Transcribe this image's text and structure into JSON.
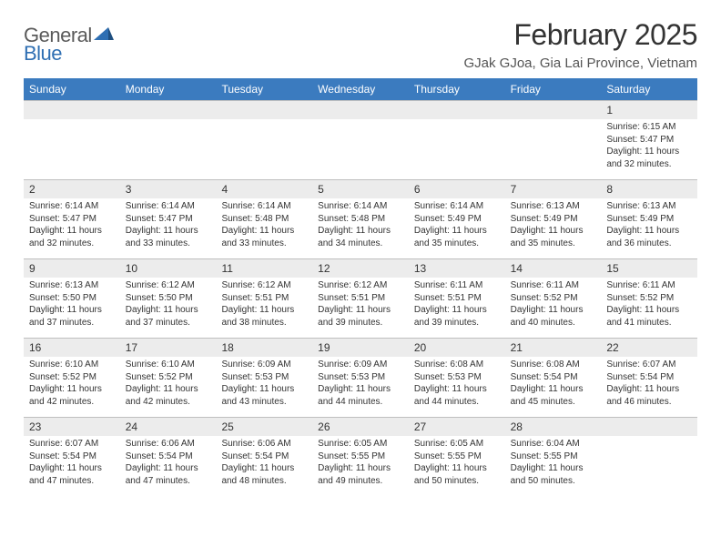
{
  "logo": {
    "part1": "General",
    "part2": "Blue"
  },
  "title": "February 2025",
  "location": "GJak GJoa, Gia Lai Province, Vietnam",
  "colors": {
    "header_bar": "#3b7bbf",
    "daynum_bg": "#ececec",
    "border": "#bfbfbf",
    "logo_gray": "#5a5a5a",
    "logo_blue": "#2f6fb3"
  },
  "weekdays": [
    "Sunday",
    "Monday",
    "Tuesday",
    "Wednesday",
    "Thursday",
    "Friday",
    "Saturday"
  ],
  "weeks": [
    [
      {
        "n": "",
        "sr": "",
        "ss": "",
        "dl": ""
      },
      {
        "n": "",
        "sr": "",
        "ss": "",
        "dl": ""
      },
      {
        "n": "",
        "sr": "",
        "ss": "",
        "dl": ""
      },
      {
        "n": "",
        "sr": "",
        "ss": "",
        "dl": ""
      },
      {
        "n": "",
        "sr": "",
        "ss": "",
        "dl": ""
      },
      {
        "n": "",
        "sr": "",
        "ss": "",
        "dl": ""
      },
      {
        "n": "1",
        "sr": "Sunrise: 6:15 AM",
        "ss": "Sunset: 5:47 PM",
        "dl": "Daylight: 11 hours and 32 minutes."
      }
    ],
    [
      {
        "n": "2",
        "sr": "Sunrise: 6:14 AM",
        "ss": "Sunset: 5:47 PM",
        "dl": "Daylight: 11 hours and 32 minutes."
      },
      {
        "n": "3",
        "sr": "Sunrise: 6:14 AM",
        "ss": "Sunset: 5:47 PM",
        "dl": "Daylight: 11 hours and 33 minutes."
      },
      {
        "n": "4",
        "sr": "Sunrise: 6:14 AM",
        "ss": "Sunset: 5:48 PM",
        "dl": "Daylight: 11 hours and 33 minutes."
      },
      {
        "n": "5",
        "sr": "Sunrise: 6:14 AM",
        "ss": "Sunset: 5:48 PM",
        "dl": "Daylight: 11 hours and 34 minutes."
      },
      {
        "n": "6",
        "sr": "Sunrise: 6:14 AM",
        "ss": "Sunset: 5:49 PM",
        "dl": "Daylight: 11 hours and 35 minutes."
      },
      {
        "n": "7",
        "sr": "Sunrise: 6:13 AM",
        "ss": "Sunset: 5:49 PM",
        "dl": "Daylight: 11 hours and 35 minutes."
      },
      {
        "n": "8",
        "sr": "Sunrise: 6:13 AM",
        "ss": "Sunset: 5:49 PM",
        "dl": "Daylight: 11 hours and 36 minutes."
      }
    ],
    [
      {
        "n": "9",
        "sr": "Sunrise: 6:13 AM",
        "ss": "Sunset: 5:50 PM",
        "dl": "Daylight: 11 hours and 37 minutes."
      },
      {
        "n": "10",
        "sr": "Sunrise: 6:12 AM",
        "ss": "Sunset: 5:50 PM",
        "dl": "Daylight: 11 hours and 37 minutes."
      },
      {
        "n": "11",
        "sr": "Sunrise: 6:12 AM",
        "ss": "Sunset: 5:51 PM",
        "dl": "Daylight: 11 hours and 38 minutes."
      },
      {
        "n": "12",
        "sr": "Sunrise: 6:12 AM",
        "ss": "Sunset: 5:51 PM",
        "dl": "Daylight: 11 hours and 39 minutes."
      },
      {
        "n": "13",
        "sr": "Sunrise: 6:11 AM",
        "ss": "Sunset: 5:51 PM",
        "dl": "Daylight: 11 hours and 39 minutes."
      },
      {
        "n": "14",
        "sr": "Sunrise: 6:11 AM",
        "ss": "Sunset: 5:52 PM",
        "dl": "Daylight: 11 hours and 40 minutes."
      },
      {
        "n": "15",
        "sr": "Sunrise: 6:11 AM",
        "ss": "Sunset: 5:52 PM",
        "dl": "Daylight: 11 hours and 41 minutes."
      }
    ],
    [
      {
        "n": "16",
        "sr": "Sunrise: 6:10 AM",
        "ss": "Sunset: 5:52 PM",
        "dl": "Daylight: 11 hours and 42 minutes."
      },
      {
        "n": "17",
        "sr": "Sunrise: 6:10 AM",
        "ss": "Sunset: 5:52 PM",
        "dl": "Daylight: 11 hours and 42 minutes."
      },
      {
        "n": "18",
        "sr": "Sunrise: 6:09 AM",
        "ss": "Sunset: 5:53 PM",
        "dl": "Daylight: 11 hours and 43 minutes."
      },
      {
        "n": "19",
        "sr": "Sunrise: 6:09 AM",
        "ss": "Sunset: 5:53 PM",
        "dl": "Daylight: 11 hours and 44 minutes."
      },
      {
        "n": "20",
        "sr": "Sunrise: 6:08 AM",
        "ss": "Sunset: 5:53 PM",
        "dl": "Daylight: 11 hours and 44 minutes."
      },
      {
        "n": "21",
        "sr": "Sunrise: 6:08 AM",
        "ss": "Sunset: 5:54 PM",
        "dl": "Daylight: 11 hours and 45 minutes."
      },
      {
        "n": "22",
        "sr": "Sunrise: 6:07 AM",
        "ss": "Sunset: 5:54 PM",
        "dl": "Daylight: 11 hours and 46 minutes."
      }
    ],
    [
      {
        "n": "23",
        "sr": "Sunrise: 6:07 AM",
        "ss": "Sunset: 5:54 PM",
        "dl": "Daylight: 11 hours and 47 minutes."
      },
      {
        "n": "24",
        "sr": "Sunrise: 6:06 AM",
        "ss": "Sunset: 5:54 PM",
        "dl": "Daylight: 11 hours and 47 minutes."
      },
      {
        "n": "25",
        "sr": "Sunrise: 6:06 AM",
        "ss": "Sunset: 5:54 PM",
        "dl": "Daylight: 11 hours and 48 minutes."
      },
      {
        "n": "26",
        "sr": "Sunrise: 6:05 AM",
        "ss": "Sunset: 5:55 PM",
        "dl": "Daylight: 11 hours and 49 minutes."
      },
      {
        "n": "27",
        "sr": "Sunrise: 6:05 AM",
        "ss": "Sunset: 5:55 PM",
        "dl": "Daylight: 11 hours and 50 minutes."
      },
      {
        "n": "28",
        "sr": "Sunrise: 6:04 AM",
        "ss": "Sunset: 5:55 PM",
        "dl": "Daylight: 11 hours and 50 minutes."
      },
      {
        "n": "",
        "sr": "",
        "ss": "",
        "dl": ""
      }
    ]
  ]
}
